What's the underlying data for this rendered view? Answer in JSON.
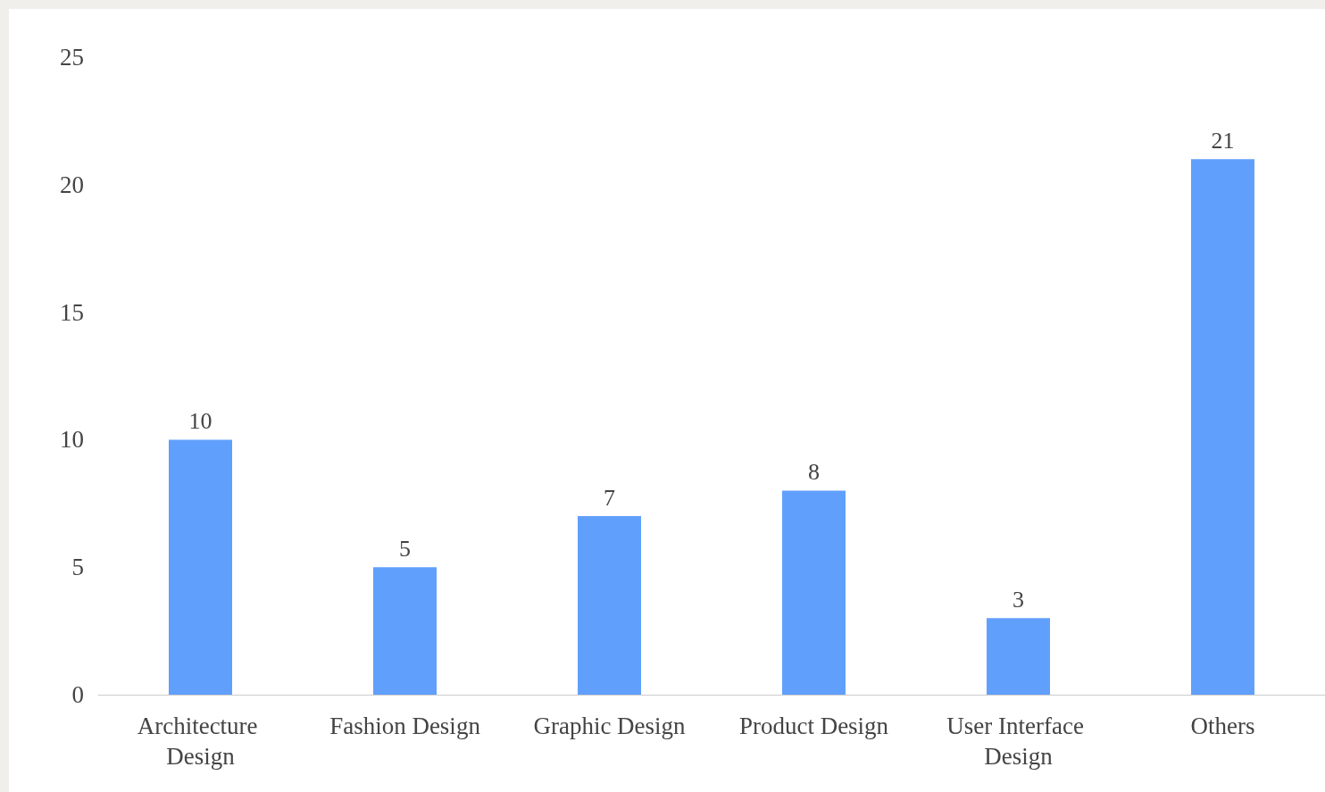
{
  "chart_data": {
    "type": "bar",
    "categories": [
      "Architecture Design",
      "Fashion Design",
      "Graphic Design",
      "Product Design",
      "User Interface Design",
      "Others"
    ],
    "values": [
      10,
      5,
      7,
      8,
      3,
      21
    ],
    "color": "#619ffc",
    "ylim": [
      0,
      25
    ],
    "yticks": [
      0,
      5,
      10,
      15,
      20,
      25
    ],
    "grid": false,
    "data_labels": true
  }
}
